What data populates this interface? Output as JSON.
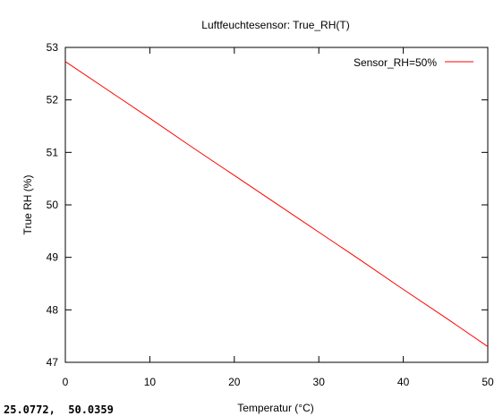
{
  "chart_data": {
    "type": "line",
    "title": "Luftfeuchtesensor: True_RH(T)",
    "xlabel": "Temperatur (°C)",
    "ylabel": "True RH (%)",
    "xlim": [
      0,
      50
    ],
    "ylim": [
      47,
      53
    ],
    "x_ticks": [
      0,
      10,
      20,
      30,
      40,
      50
    ],
    "y_ticks": [
      47,
      48,
      49,
      50,
      51,
      52,
      53
    ],
    "grid": false,
    "legend_position": "top-right",
    "series": [
      {
        "name": "Sensor_RH=50%",
        "color": "#ff0000",
        "x": [
          0,
          5,
          10,
          15,
          20,
          25,
          30,
          35,
          40,
          45,
          50
        ],
        "y": [
          52.73,
          52.19,
          51.65,
          51.1,
          50.56,
          50.02,
          49.48,
          48.94,
          48.39,
          47.85,
          47.3
        ]
      }
    ]
  },
  "status": {
    "coordinates": "25.0772,  50.0359"
  }
}
